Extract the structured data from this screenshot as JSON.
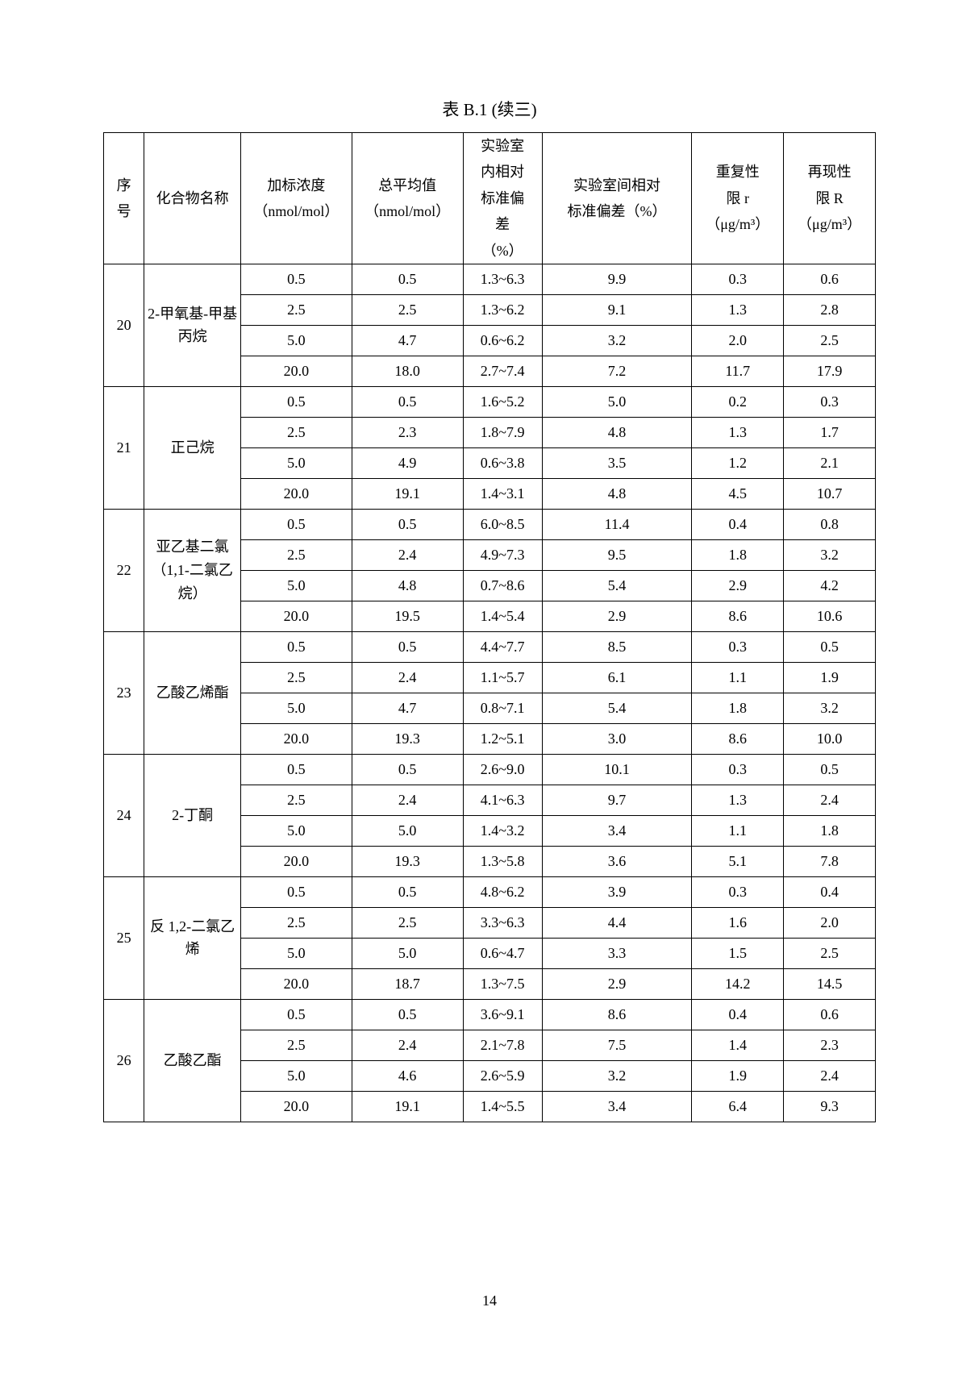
{
  "title": "表 B.1 (续三)",
  "page_number": "14",
  "columns": {
    "seq": {
      "line1": "序",
      "line2": "号"
    },
    "name": "化合物名称",
    "conc": {
      "line1": "加标浓度",
      "unit": "（nmol/mol）"
    },
    "avg": {
      "line1": "总平均值",
      "unit": "（nmol/mol）"
    },
    "rsd_in": {
      "l1": "实验室",
      "l2": "内相对",
      "l3": "标准偏",
      "l4": "差",
      "l5": "（%）"
    },
    "rsd_between": {
      "l1": "实验室间相对",
      "l2": "标准偏差（%）"
    },
    "limit_r": {
      "l1": "重复性",
      "l2": "限 r",
      "unit": "（μg/m³）"
    },
    "limit_R": {
      "l1": "再现性",
      "l2": "限 R",
      "unit": "（μg/m³）"
    }
  },
  "groups": [
    {
      "seq": "20",
      "name_lines": [
        "2-甲氧基-甲基",
        "丙烷"
      ],
      "rows": [
        {
          "conc": "0.5",
          "avg": "0.5",
          "rsd_in": "1.3~6.3",
          "rsd_btw": "9.9",
          "r": "0.3",
          "R": "0.6"
        },
        {
          "conc": "2.5",
          "avg": "2.5",
          "rsd_in": "1.3~6.2",
          "rsd_btw": "9.1",
          "r": "1.3",
          "R": "2.8"
        },
        {
          "conc": "5.0",
          "avg": "4.7",
          "rsd_in": "0.6~6.2",
          "rsd_btw": "3.2",
          "r": "2.0",
          "R": "2.5"
        },
        {
          "conc": "20.0",
          "avg": "18.0",
          "rsd_in": "2.7~7.4",
          "rsd_btw": "7.2",
          "r": "11.7",
          "R": "17.9"
        }
      ]
    },
    {
      "seq": "21",
      "name_lines": [
        "正己烷"
      ],
      "rows": [
        {
          "conc": "0.5",
          "avg": "0.5",
          "rsd_in": "1.6~5.2",
          "rsd_btw": "5.0",
          "r": "0.2",
          "R": "0.3"
        },
        {
          "conc": "2.5",
          "avg": "2.3",
          "rsd_in": "1.8~7.9",
          "rsd_btw": "4.8",
          "r": "1.3",
          "R": "1.7"
        },
        {
          "conc": "5.0",
          "avg": "4.9",
          "rsd_in": "0.6~3.8",
          "rsd_btw": "3.5",
          "r": "1.2",
          "R": "2.1"
        },
        {
          "conc": "20.0",
          "avg": "19.1",
          "rsd_in": "1.4~3.1",
          "rsd_btw": "4.8",
          "r": "4.5",
          "R": "10.7"
        }
      ]
    },
    {
      "seq": "22",
      "name_lines": [
        "亚乙基二氯",
        "（1,1-二氯乙",
        "烷）"
      ],
      "rows": [
        {
          "conc": "0.5",
          "avg": "0.5",
          "rsd_in": "6.0~8.5",
          "rsd_btw": "11.4",
          "r": "0.4",
          "R": "0.8"
        },
        {
          "conc": "2.5",
          "avg": "2.4",
          "rsd_in": "4.9~7.3",
          "rsd_btw": "9.5",
          "r": "1.8",
          "R": "3.2"
        },
        {
          "conc": "5.0",
          "avg": "4.8",
          "rsd_in": "0.7~8.6",
          "rsd_btw": "5.4",
          "r": "2.9",
          "R": "4.2"
        },
        {
          "conc": "20.0",
          "avg": "19.5",
          "rsd_in": "1.4~5.4",
          "rsd_btw": "2.9",
          "r": "8.6",
          "R": "10.6"
        }
      ]
    },
    {
      "seq": "23",
      "name_lines": [
        "乙酸乙烯酯"
      ],
      "rows": [
        {
          "conc": "0.5",
          "avg": "0.5",
          "rsd_in": "4.4~7.7",
          "rsd_btw": "8.5",
          "r": "0.3",
          "R": "0.5"
        },
        {
          "conc": "2.5",
          "avg": "2.4",
          "rsd_in": "1.1~5.7",
          "rsd_btw": "6.1",
          "r": "1.1",
          "R": "1.9"
        },
        {
          "conc": "5.0",
          "avg": "4.7",
          "rsd_in": "0.8~7.1",
          "rsd_btw": "5.4",
          "r": "1.8",
          "R": "3.2"
        },
        {
          "conc": "20.0",
          "avg": "19.3",
          "rsd_in": "1.2~5.1",
          "rsd_btw": "3.0",
          "r": "8.6",
          "R": "10.0"
        }
      ]
    },
    {
      "seq": "24",
      "name_lines": [
        "2-丁酮"
      ],
      "rows": [
        {
          "conc": "0.5",
          "avg": "0.5",
          "rsd_in": "2.6~9.0",
          "rsd_btw": "10.1",
          "r": "0.3",
          "R": "0.5"
        },
        {
          "conc": "2.5",
          "avg": "2.4",
          "rsd_in": "4.1~6.3",
          "rsd_btw": "9.7",
          "r": "1.3",
          "R": "2.4"
        },
        {
          "conc": "5.0",
          "avg": "5.0",
          "rsd_in": "1.4~3.2",
          "rsd_btw": "3.4",
          "r": "1.1",
          "R": "1.8"
        },
        {
          "conc": "20.0",
          "avg": "19.3",
          "rsd_in": "1.3~5.8",
          "rsd_btw": "3.6",
          "r": "5.1",
          "R": "7.8"
        }
      ]
    },
    {
      "seq": "25",
      "name_lines": [
        "反 1,2-二氯乙",
        "烯"
      ],
      "rows": [
        {
          "conc": "0.5",
          "avg": "0.5",
          "rsd_in": "4.8~6.2",
          "rsd_btw": "3.9",
          "r": "0.3",
          "R": "0.4"
        },
        {
          "conc": "2.5",
          "avg": "2.5",
          "rsd_in": "3.3~6.3",
          "rsd_btw": "4.4",
          "r": "1.6",
          "R": "2.0"
        },
        {
          "conc": "5.0",
          "avg": "5.0",
          "rsd_in": "0.6~4.7",
          "rsd_btw": "3.3",
          "r": "1.5",
          "R": "2.5"
        },
        {
          "conc": "20.0",
          "avg": "18.7",
          "rsd_in": "1.3~7.5",
          "rsd_btw": "2.9",
          "r": "14.2",
          "R": "14.5"
        }
      ]
    },
    {
      "seq": "26",
      "name_lines": [
        "乙酸乙酯"
      ],
      "rows": [
        {
          "conc": "0.5",
          "avg": "0.5",
          "rsd_in": "3.6~9.1",
          "rsd_btw": "8.6",
          "r": "0.4",
          "R": "0.6"
        },
        {
          "conc": "2.5",
          "avg": "2.4",
          "rsd_in": "2.1~7.8",
          "rsd_btw": "7.5",
          "r": "1.4",
          "R": "2.3"
        },
        {
          "conc": "5.0",
          "avg": "4.6",
          "rsd_in": "2.6~5.9",
          "rsd_btw": "3.2",
          "r": "1.9",
          "R": "2.4"
        },
        {
          "conc": "20.0",
          "avg": "19.1",
          "rsd_in": "1.4~5.5",
          "rsd_btw": "3.4",
          "r": "6.4",
          "R": "9.3"
        }
      ]
    }
  ]
}
